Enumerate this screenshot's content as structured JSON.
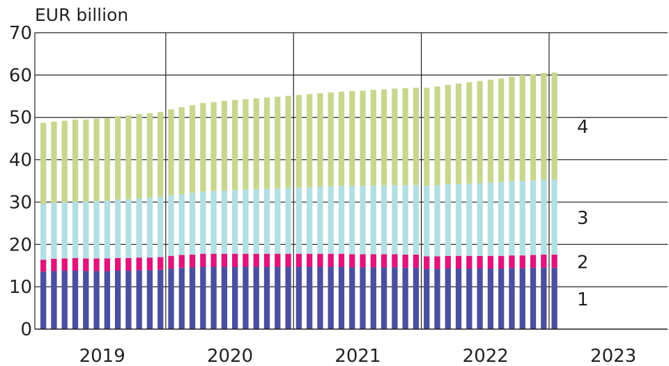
{
  "chart_data": {
    "type": "bar",
    "stacked": true,
    "ylabel": "EUR billion",
    "ylim": [
      0,
      70
    ],
    "yticks": [
      "0",
      "10",
      "20",
      "30",
      "40",
      "50",
      "60",
      "70"
    ],
    "year_labels": [
      "2019",
      "2020",
      "2021",
      "2022",
      "2023"
    ],
    "grid": true,
    "colors": {
      "s1": "#4b4f9f",
      "s2": "#e0147a",
      "s3": "#b2dfe3",
      "s4": "#c8d78f",
      "text": "#231f20",
      "grid": "#231f20"
    },
    "series_labels": [
      "1",
      "2",
      "3",
      "4"
    ],
    "months": [
      "2019-01",
      "2019-02",
      "2019-03",
      "2019-04",
      "2019-05",
      "2019-06",
      "2019-07",
      "2019-08",
      "2019-09",
      "2019-10",
      "2019-11",
      "2019-12",
      "2020-01",
      "2020-02",
      "2020-03",
      "2020-04",
      "2020-05",
      "2020-06",
      "2020-07",
      "2020-08",
      "2020-09",
      "2020-10",
      "2020-11",
      "2020-12",
      "2021-01",
      "2021-02",
      "2021-03",
      "2021-04",
      "2021-05",
      "2021-06",
      "2021-07",
      "2021-08",
      "2021-09",
      "2021-10",
      "2021-11",
      "2021-12",
      "2022-01",
      "2022-02",
      "2022-03",
      "2022-04",
      "2022-05",
      "2022-06",
      "2022-07",
      "2022-08",
      "2022-09",
      "2022-10",
      "2022-11",
      "2022-12",
      "2023-01"
    ],
    "series": [
      {
        "label": "1",
        "values": [
          13.6,
          13.7,
          13.8,
          13.8,
          13.7,
          13.7,
          13.7,
          13.8,
          13.8,
          13.9,
          13.9,
          14.0,
          14.3,
          14.5,
          14.6,
          14.7,
          14.7,
          14.7,
          14.7,
          14.7,
          14.7,
          14.7,
          14.7,
          14.7,
          14.7,
          14.7,
          14.7,
          14.7,
          14.7,
          14.6,
          14.6,
          14.6,
          14.6,
          14.6,
          14.5,
          14.5,
          14.2,
          14.2,
          14.3,
          14.3,
          14.3,
          14.3,
          14.3,
          14.3,
          14.4,
          14.4,
          14.5,
          14.5,
          14.5
        ]
      },
      {
        "label": "2",
        "values": [
          2.8,
          2.9,
          2.9,
          3.0,
          3.0,
          3.0,
          3.0,
          3.0,
          3.0,
          3.0,
          3.0,
          3.0,
          3.0,
          3.0,
          3.0,
          3.1,
          3.1,
          3.1,
          3.1,
          3.1,
          3.1,
          3.1,
          3.1,
          3.1,
          3.1,
          3.1,
          3.1,
          3.1,
          3.1,
          3.1,
          3.1,
          3.1,
          3.1,
          3.1,
          3.1,
          3.1,
          3.0,
          3.0,
          3.0,
          3.0,
          3.0,
          3.0,
          3.0,
          3.0,
          3.0,
          3.0,
          3.0,
          3.1,
          3.1
        ]
      },
      {
        "label": "3",
        "values": [
          13.1,
          13.2,
          13.2,
          13.3,
          13.4,
          13.5,
          13.6,
          13.8,
          13.9,
          14.0,
          14.1,
          14.2,
          14.3,
          14.4,
          14.6,
          14.7,
          14.8,
          14.9,
          15.0,
          15.1,
          15.2,
          15.3,
          15.4,
          15.5,
          15.6,
          15.7,
          15.8,
          15.9,
          16.0,
          16.1,
          16.1,
          16.2,
          16.2,
          16.3,
          16.4,
          16.4,
          16.7,
          16.8,
          16.9,
          17.0,
          17.1,
          17.2,
          17.3,
          17.4,
          17.5,
          17.6,
          17.6,
          17.7,
          17.7
        ]
      },
      {
        "label": "4",
        "values": [
          19.2,
          19.2,
          19.3,
          19.4,
          19.4,
          19.5,
          19.6,
          19.7,
          19.8,
          19.9,
          20.0,
          20.1,
          20.3,
          20.5,
          20.7,
          20.9,
          21.0,
          21.2,
          21.3,
          21.4,
          21.5,
          21.6,
          21.7,
          21.8,
          21.9,
          22.0,
          22.1,
          22.2,
          22.3,
          22.4,
          22.5,
          22.6,
          22.7,
          22.8,
          22.9,
          23.0,
          23.1,
          23.3,
          23.5,
          23.7,
          23.9,
          24.1,
          24.3,
          24.5,
          24.7,
          25.0,
          25.1,
          25.2,
          25.3
        ]
      }
    ]
  }
}
